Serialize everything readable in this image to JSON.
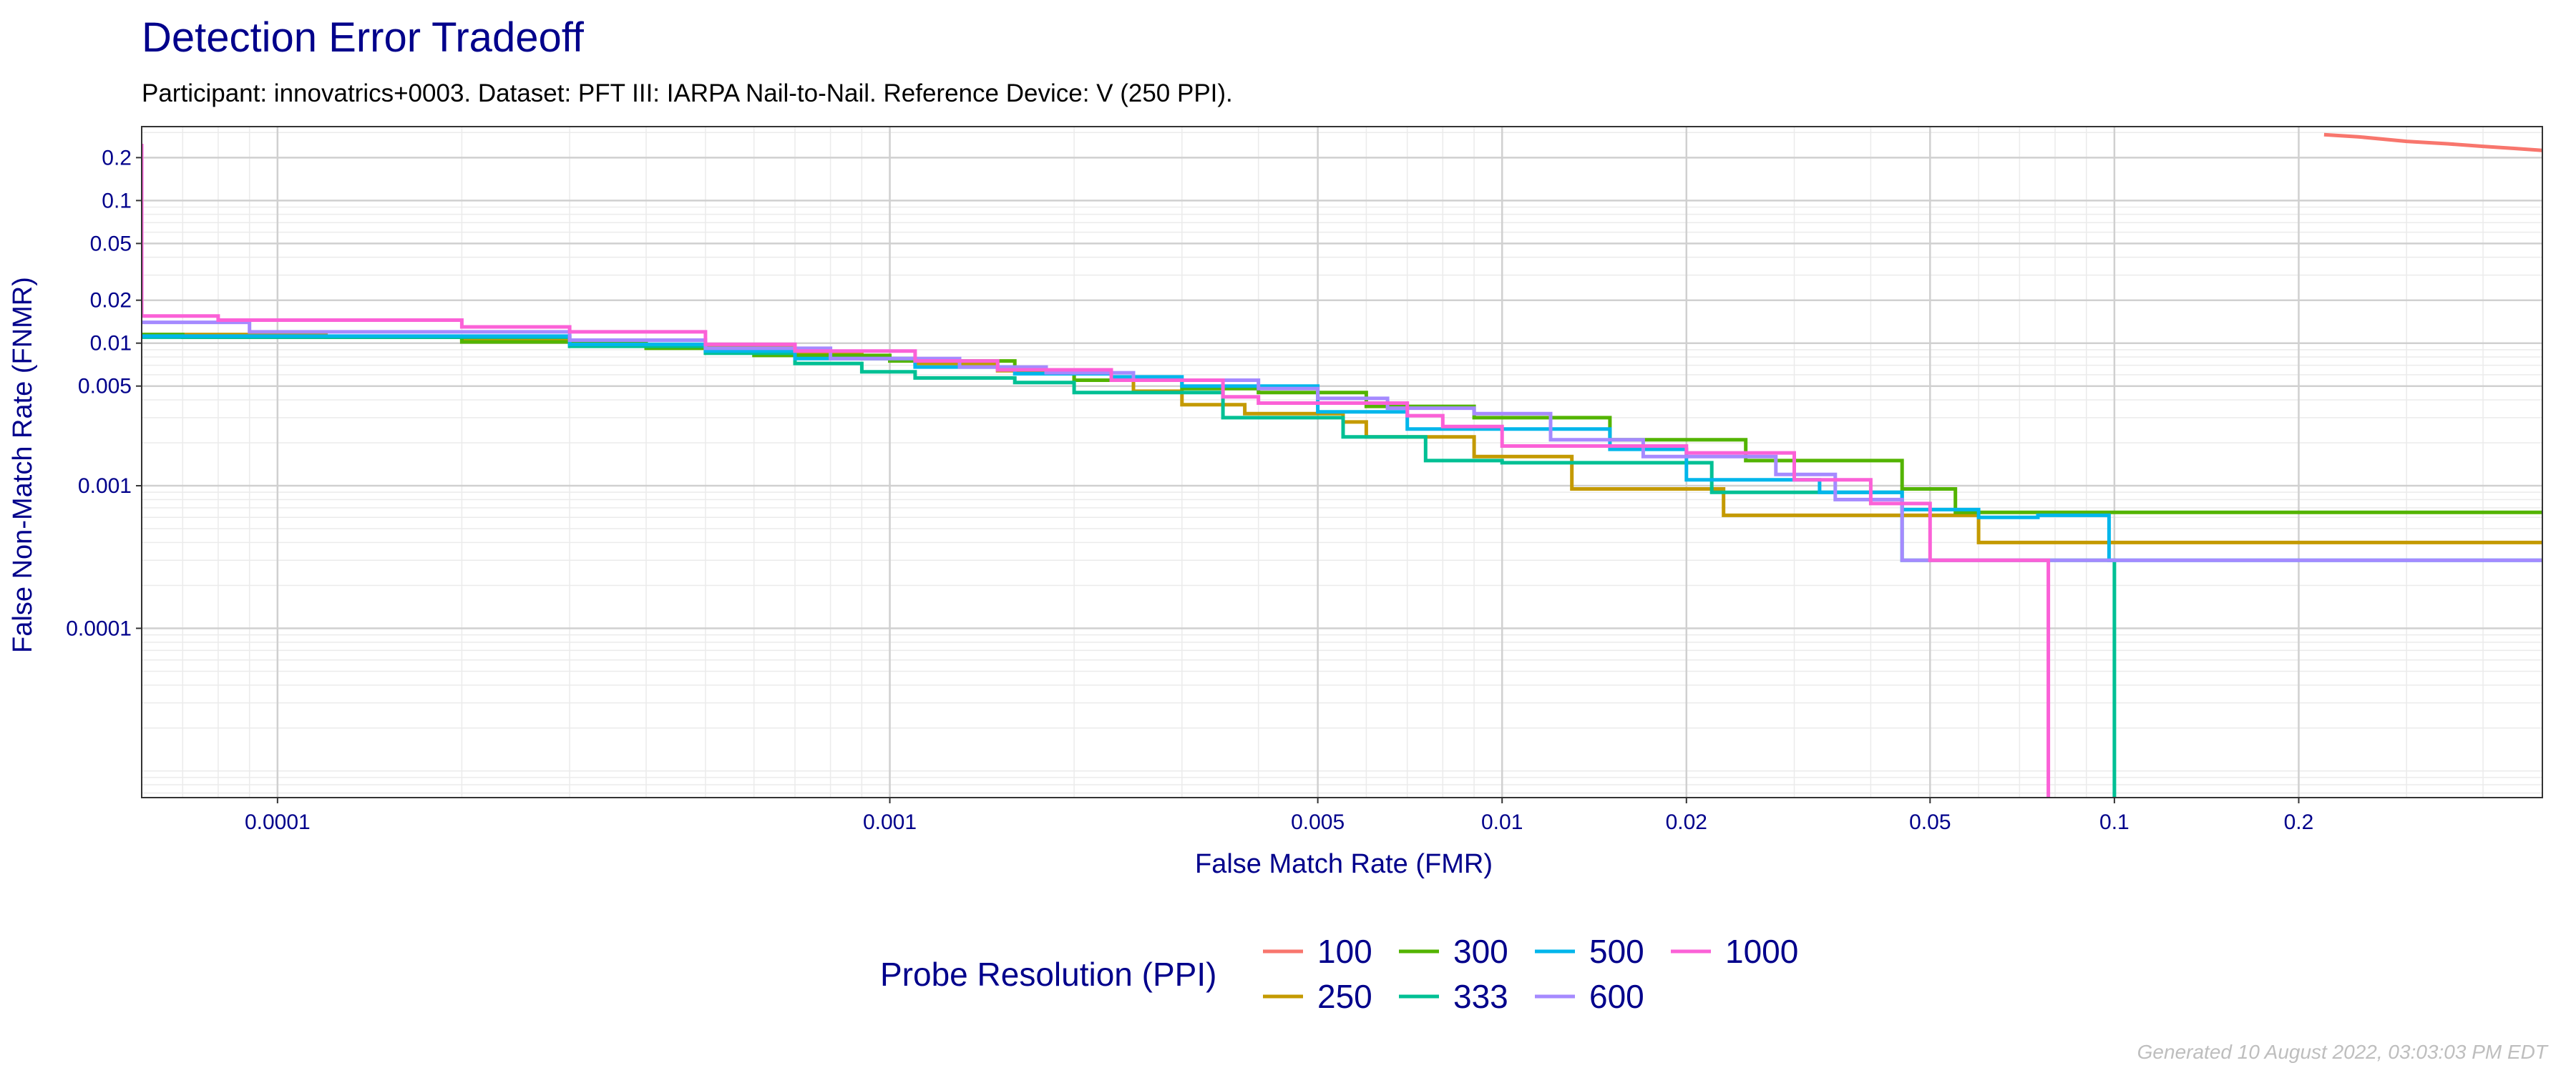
{
  "chart_data": {
    "type": "line",
    "title": "Detection Error Tradeoff",
    "subtitle": "Participant: innovatrics+0003. Dataset: PFT III: IARPA Nail-to-Nail. Reference Device: V (250 PPI).",
    "xlabel": "False Match Rate (FMR)",
    "ylabel": "False Non-Match Rate (FNMR)",
    "x_scale": "log",
    "y_scale": "log",
    "xlim": [
      6e-05,
      0.5
    ],
    "ylim": [
      6.5e-06,
      0.33
    ],
    "grid": true,
    "x_ticks": [
      {
        "value": 0.0001,
        "label": "0.0001"
      },
      {
        "value": 0.001,
        "label": "0.001"
      },
      {
        "value": 0.005,
        "label": "0.005"
      },
      {
        "value": 0.01,
        "label": "0.01"
      },
      {
        "value": 0.02,
        "label": "0.02"
      },
      {
        "value": 0.05,
        "label": "0.05"
      },
      {
        "value": 0.1,
        "label": "0.1"
      },
      {
        "value": 0.2,
        "label": "0.2"
      }
    ],
    "y_ticks": [
      {
        "value": 0.0001,
        "label": "0.0001"
      },
      {
        "value": 0.001,
        "label": "0.001"
      },
      {
        "value": 0.005,
        "label": "0.005"
      },
      {
        "value": 0.01,
        "label": "0.01"
      },
      {
        "value": 0.02,
        "label": "0.02"
      },
      {
        "value": 0.05,
        "label": "0.05"
      },
      {
        "value": 0.1,
        "label": "0.1"
      },
      {
        "value": 0.2,
        "label": "0.2"
      }
    ],
    "legend_title": "Probe Resolution (PPI)",
    "legend_position": "bottom",
    "series": [
      {
        "name": "100",
        "color": "#f8766d",
        "points": [
          [
            0.22,
            0.29
          ],
          [
            0.25,
            0.28
          ],
          [
            0.3,
            0.26
          ],
          [
            0.35,
            0.25
          ],
          [
            0.4,
            0.24
          ],
          [
            0.45,
            0.232
          ],
          [
            0.5,
            0.225
          ]
        ]
      },
      {
        "name": "250",
        "color": "#c49a00",
        "points": [
          [
            6e-05,
            0.0115
          ],
          [
            0.00012,
            0.0115
          ],
          [
            0.00012,
            0.011
          ],
          [
            0.0002,
            0.011
          ],
          [
            0.0002,
            0.0105
          ],
          [
            0.0004,
            0.0105
          ],
          [
            0.0004,
            0.0095
          ],
          [
            0.0007,
            0.0095
          ],
          [
            0.0007,
            0.0085
          ],
          [
            0.0009,
            0.0085
          ],
          [
            0.0009,
            0.0078
          ],
          [
            0.0011,
            0.0078
          ],
          [
            0.0011,
            0.0072
          ],
          [
            0.0015,
            0.0072
          ],
          [
            0.0015,
            0.0064
          ],
          [
            0.002,
            0.0064
          ],
          [
            0.002,
            0.0055
          ],
          [
            0.0025,
            0.0055
          ],
          [
            0.0025,
            0.0046
          ],
          [
            0.003,
            0.0046
          ],
          [
            0.003,
            0.0037
          ],
          [
            0.0038,
            0.0037
          ],
          [
            0.0038,
            0.0032
          ],
          [
            0.0055,
            0.0032
          ],
          [
            0.0055,
            0.0028
          ],
          [
            0.006,
            0.0028
          ],
          [
            0.006,
            0.0022
          ],
          [
            0.009,
            0.0022
          ],
          [
            0.009,
            0.0016
          ],
          [
            0.013,
            0.0016
          ],
          [
            0.013,
            0.00095
          ],
          [
            0.023,
            0.00095
          ],
          [
            0.023,
            0.00062
          ],
          [
            0.06,
            0.00062
          ],
          [
            0.06,
            0.0004
          ],
          [
            0.5,
            0.0004
          ]
        ]
      },
      {
        "name": "300",
        "color": "#53b400",
        "points": [
          [
            6e-05,
            0.0115
          ],
          [
            7e-05,
            0.0115
          ],
          [
            7e-05,
            0.011
          ],
          [
            0.0002,
            0.011
          ],
          [
            0.0002,
            0.0102
          ],
          [
            0.0004,
            0.0102
          ],
          [
            0.0004,
            0.0092
          ],
          [
            0.0006,
            0.0092
          ],
          [
            0.0006,
            0.0082
          ],
          [
            0.001,
            0.0082
          ],
          [
            0.001,
            0.0075
          ],
          [
            0.0016,
            0.0075
          ],
          [
            0.0016,
            0.0064
          ],
          [
            0.002,
            0.0064
          ],
          [
            0.002,
            0.0055
          ],
          [
            0.003,
            0.0055
          ],
          [
            0.003,
            0.0048
          ],
          [
            0.004,
            0.0048
          ],
          [
            0.004,
            0.0045
          ],
          [
            0.006,
            0.0045
          ],
          [
            0.006,
            0.0036
          ],
          [
            0.009,
            0.0036
          ],
          [
            0.009,
            0.003
          ],
          [
            0.015,
            0.003
          ],
          [
            0.015,
            0.0021
          ],
          [
            0.025,
            0.0021
          ],
          [
            0.025,
            0.0015
          ],
          [
            0.045,
            0.0015
          ],
          [
            0.045,
            0.00095
          ],
          [
            0.055,
            0.00095
          ],
          [
            0.055,
            0.00065
          ],
          [
            0.5,
            0.00065
          ]
        ]
      },
      {
        "name": "333",
        "color": "#00c094",
        "points": [
          [
            6e-05,
            0.011
          ],
          [
            0.0003,
            0.011
          ],
          [
            0.0003,
            0.0095
          ],
          [
            0.0005,
            0.0095
          ],
          [
            0.0005,
            0.0085
          ],
          [
            0.0007,
            0.0085
          ],
          [
            0.0007,
            0.0072
          ],
          [
            0.0009,
            0.0072
          ],
          [
            0.0009,
            0.0063
          ],
          [
            0.0011,
            0.0063
          ],
          [
            0.0011,
            0.0057
          ],
          [
            0.0016,
            0.0057
          ],
          [
            0.0016,
            0.0053
          ],
          [
            0.002,
            0.0053
          ],
          [
            0.002,
            0.0045
          ],
          [
            0.0035,
            0.0045
          ],
          [
            0.0035,
            0.003
          ],
          [
            0.0055,
            0.003
          ],
          [
            0.0055,
            0.0022
          ],
          [
            0.0075,
            0.0022
          ],
          [
            0.0075,
            0.0015
          ],
          [
            0.01,
            0.0015
          ],
          [
            0.01,
            0.00145
          ],
          [
            0.022,
            0.00145
          ],
          [
            0.022,
            0.0009
          ],
          [
            0.045,
            0.0009
          ],
          [
            0.045,
            0.0003
          ],
          [
            0.1,
            0.0003
          ],
          [
            0.1,
            6.5e-06
          ]
        ]
      },
      {
        "name": "500",
        "color": "#00b6eb",
        "points": [
          [
            6e-05,
            0.0112
          ],
          [
            0.0003,
            0.0112
          ],
          [
            0.0003,
            0.0098
          ],
          [
            0.0005,
            0.0098
          ],
          [
            0.0005,
            0.0088
          ],
          [
            0.0007,
            0.0088
          ],
          [
            0.0007,
            0.0078
          ],
          [
            0.0011,
            0.0078
          ],
          [
            0.0011,
            0.0068
          ],
          [
            0.0016,
            0.0068
          ],
          [
            0.0016,
            0.0061
          ],
          [
            0.0023,
            0.0061
          ],
          [
            0.0023,
            0.0058
          ],
          [
            0.003,
            0.0058
          ],
          [
            0.003,
            0.005
          ],
          [
            0.005,
            0.005
          ],
          [
            0.005,
            0.0033
          ],
          [
            0.007,
            0.0033
          ],
          [
            0.007,
            0.0025
          ],
          [
            0.015,
            0.0025
          ],
          [
            0.015,
            0.0018
          ],
          [
            0.02,
            0.0018
          ],
          [
            0.02,
            0.0011
          ],
          [
            0.033,
            0.0011
          ],
          [
            0.033,
            0.0009
          ],
          [
            0.045,
            0.0009
          ],
          [
            0.045,
            0.00068
          ],
          [
            0.06,
            0.00068
          ],
          [
            0.06,
            0.0006
          ],
          [
            0.075,
            0.0006
          ],
          [
            0.075,
            0.00062
          ],
          [
            0.098,
            0.00062
          ],
          [
            0.098,
            0.0003
          ],
          [
            0.5,
            0.0003
          ]
        ]
      },
      {
        "name": "600",
        "color": "#a58aff",
        "points": [
          [
            6e-05,
            0.014
          ],
          [
            9e-05,
            0.014
          ],
          [
            9e-05,
            0.012
          ],
          [
            0.0003,
            0.012
          ],
          [
            0.0003,
            0.0105
          ],
          [
            0.0005,
            0.0105
          ],
          [
            0.0005,
            0.0092
          ],
          [
            0.0008,
            0.0092
          ],
          [
            0.0008,
            0.0078
          ],
          [
            0.0013,
            0.0078
          ],
          [
            0.0013,
            0.0068
          ],
          [
            0.0018,
            0.0068
          ],
          [
            0.0018,
            0.0062
          ],
          [
            0.0025,
            0.0062
          ],
          [
            0.0025,
            0.0055
          ],
          [
            0.004,
            0.0055
          ],
          [
            0.004,
            0.0048
          ],
          [
            0.005,
            0.0048
          ],
          [
            0.005,
            0.0041
          ],
          [
            0.0065,
            0.0041
          ],
          [
            0.0065,
            0.0035
          ],
          [
            0.009,
            0.0035
          ],
          [
            0.009,
            0.0032
          ],
          [
            0.012,
            0.0032
          ],
          [
            0.012,
            0.0021
          ],
          [
            0.017,
            0.0021
          ],
          [
            0.017,
            0.0016
          ],
          [
            0.028,
            0.0016
          ],
          [
            0.028,
            0.0012
          ],
          [
            0.035,
            0.0012
          ],
          [
            0.035,
            0.0008
          ],
          [
            0.045,
            0.0008
          ],
          [
            0.045,
            0.0003
          ],
          [
            0.5,
            0.0003
          ]
        ]
      },
      {
        "name": "1000",
        "color": "#fb61d7",
        "points": [
          [
            6e-05,
            0.25
          ],
          [
            6e-05,
            0.0155
          ],
          [
            8e-05,
            0.0155
          ],
          [
            8e-05,
            0.0145
          ],
          [
            0.0002,
            0.0145
          ],
          [
            0.0002,
            0.013
          ],
          [
            0.0003,
            0.013
          ],
          [
            0.0003,
            0.012
          ],
          [
            0.0005,
            0.012
          ],
          [
            0.0005,
            0.0098
          ],
          [
            0.0007,
            0.0098
          ],
          [
            0.0007,
            0.0088
          ],
          [
            0.0011,
            0.0088
          ],
          [
            0.0011,
            0.0075
          ],
          [
            0.0015,
            0.0075
          ],
          [
            0.0015,
            0.0065
          ],
          [
            0.0023,
            0.0065
          ],
          [
            0.0023,
            0.0055
          ],
          [
            0.0035,
            0.0055
          ],
          [
            0.0035,
            0.0042
          ],
          [
            0.004,
            0.0042
          ],
          [
            0.004,
            0.0038
          ],
          [
            0.007,
            0.0038
          ],
          [
            0.007,
            0.0031
          ],
          [
            0.008,
            0.0031
          ],
          [
            0.008,
            0.0026
          ],
          [
            0.01,
            0.0026
          ],
          [
            0.01,
            0.0019
          ],
          [
            0.02,
            0.0019
          ],
          [
            0.02,
            0.0017
          ],
          [
            0.03,
            0.0017
          ],
          [
            0.03,
            0.0011
          ],
          [
            0.04,
            0.0011
          ],
          [
            0.04,
            0.00075
          ],
          [
            0.05,
            0.00075
          ],
          [
            0.05,
            0.0003
          ],
          [
            0.078,
            0.0003
          ],
          [
            0.078,
            6.5e-06
          ]
        ]
      }
    ]
  },
  "footer": {
    "generated": "Generated 10 August 2022, 03:03:03 PM EDT"
  }
}
